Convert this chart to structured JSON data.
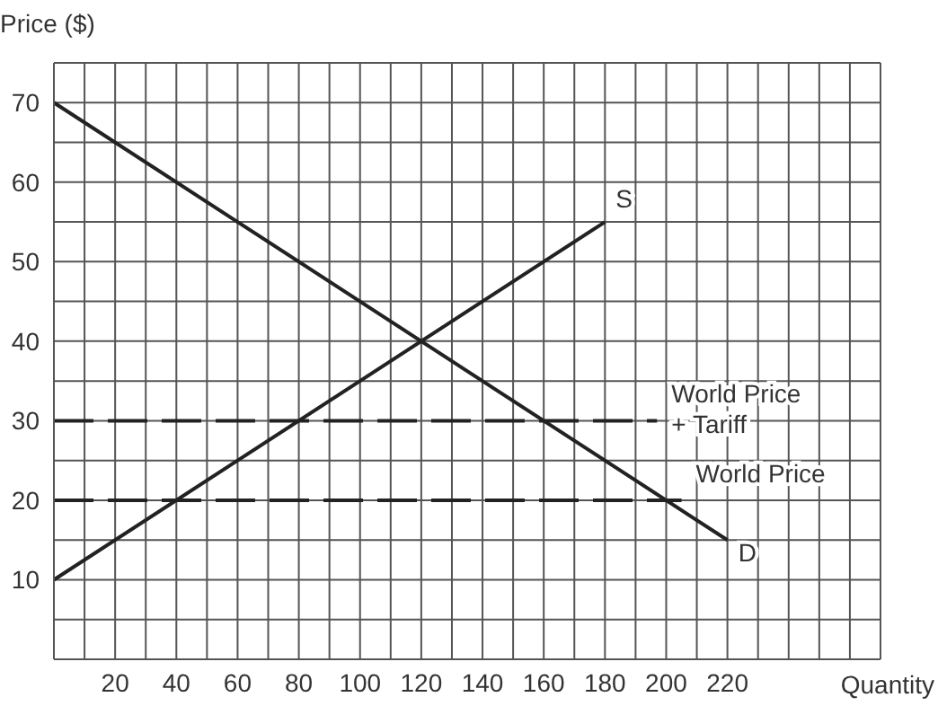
{
  "chart_data": {
    "type": "line",
    "xlabel": "Quantity",
    "ylabel": "Price ($)",
    "xlim": [
      0,
      270
    ],
    "ylim": [
      0,
      75
    ],
    "xticks": [
      {
        "value": 10,
        "label": null
      },
      20,
      {
        "value": 30,
        "label": null
      },
      40,
      {
        "value": 50,
        "label": null
      },
      60,
      {
        "value": 70,
        "label": null
      },
      80,
      {
        "value": 90,
        "label": null
      },
      100,
      {
        "value": 110,
        "label": null
      },
      120,
      {
        "value": 130,
        "label": null
      },
      140,
      {
        "value": 150,
        "label": null
      },
      160,
      {
        "value": 170,
        "label": null
      },
      180,
      {
        "value": 190,
        "label": null
      },
      200,
      {
        "value": 210,
        "label": null
      },
      220,
      {
        "value": 230,
        "label": null
      },
      {
        "value": 240,
        "label": null
      },
      {
        "value": 250,
        "label": null
      },
      {
        "value": 260,
        "label": null
      }
    ],
    "yticks": [
      {
        "value": 5,
        "label": null
      },
      10,
      {
        "value": 15,
        "label": null
      },
      20,
      {
        "value": 25,
        "label": null
      },
      30,
      {
        "value": 35,
        "label": null
      },
      40,
      {
        "value": 45,
        "label": null
      },
      50,
      {
        "value": 55,
        "label": null
      },
      60,
      {
        "value": 65,
        "label": null
      },
      70
    ],
    "grid": true,
    "marker": "none",
    "series": [
      {
        "name": "D",
        "color": "#222222",
        "x": [
          0,
          220
        ],
        "values": [
          70,
          15
        ],
        "line_style": "solid"
      },
      {
        "name": "S",
        "color": "#222222",
        "x": [
          0,
          180
        ],
        "values": [
          10,
          55
        ],
        "line_style": "solid"
      },
      {
        "name": "World Price + Tariff",
        "color": "#222222",
        "x": [
          0,
          197
        ],
        "values": [
          30,
          30
        ],
        "line_style": "dashed"
      },
      {
        "name": "World Price",
        "color": "#222222",
        "x": [
          0,
          205
        ],
        "values": [
          20,
          20
        ],
        "line_style": "dashed"
      }
    ]
  }
}
